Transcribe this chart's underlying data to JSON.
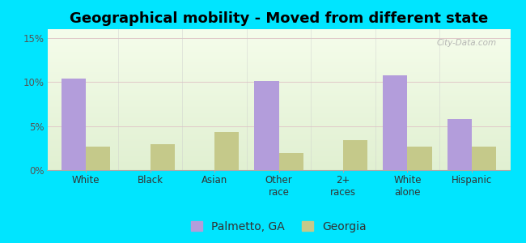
{
  "title": "Geographical mobility - Moved from different state",
  "categories": [
    "White",
    "Black",
    "Asian",
    "Other\nrace",
    "2+\nraces",
    "White\nalone",
    "Hispanic"
  ],
  "palmetto_values": [
    10.4,
    0,
    0,
    10.1,
    0,
    10.8,
    5.8
  ],
  "georgia_values": [
    2.7,
    2.9,
    4.3,
    1.9,
    3.4,
    2.7,
    2.7
  ],
  "palmetto_color": "#b39ddb",
  "georgia_color": "#c5c98a",
  "outer_bg": "#00e5ff",
  "ylim": [
    0,
    0.16
  ],
  "yticks": [
    0,
    0.05,
    0.1,
    0.15
  ],
  "ytick_labels": [
    "0%",
    "5%",
    "10%",
    "15%"
  ],
  "bar_width": 0.38,
  "legend_palmetto": "Palmetto, GA",
  "legend_georgia": "Georgia",
  "title_fontsize": 13,
  "tick_fontsize": 8.5,
  "legend_fontsize": 10,
  "watermark": "City-Data.com"
}
